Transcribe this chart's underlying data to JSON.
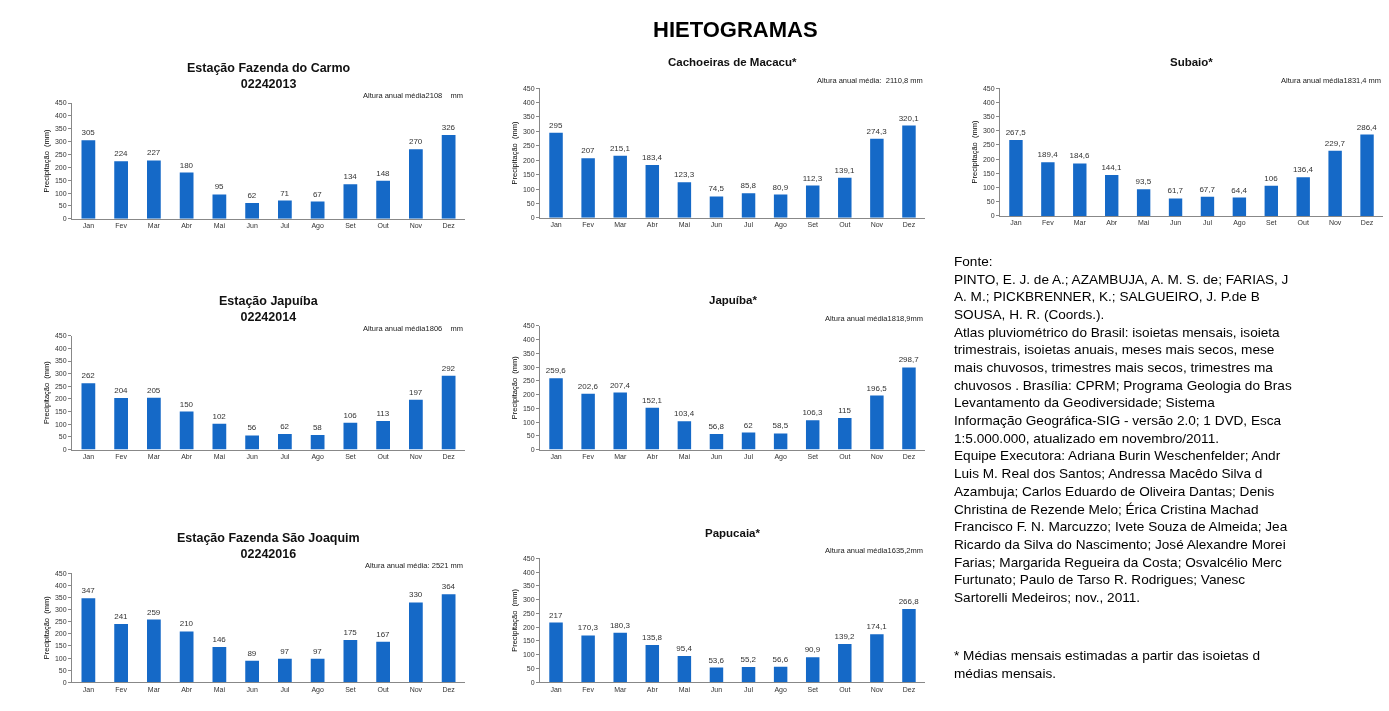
{
  "chart_data": [
    {
      "type": "other",
      "title": "HIETOGRAMAS"
    },
    {
      "type": "bar",
      "title": "Estação Fazenda do Carmo\n02242013",
      "ylabel": "Precipitação  (mm)",
      "annotations": [
        "Altura anual média2108    mm"
      ],
      "categories": [
        "Jan",
        "Fev",
        "Mar",
        "Abr",
        "Mai",
        "Jun",
        "Jul",
        "Ago",
        "Set",
        "Out",
        "Nov",
        "Dez"
      ],
      "color": "#1569c7",
      "values": [
        305,
        224,
        227,
        180,
        95,
        62,
        71,
        67,
        134,
        148,
        270,
        326
      ],
      "value_labels": [
        "305",
        "224",
        "227",
        "180",
        "95",
        "62",
        "71",
        "67",
        "134",
        "148",
        "270",
        "326"
      ],
      "ylim": [
        0,
        450
      ],
      "yticks": [
        0,
        50,
        100,
        150,
        200,
        250,
        300,
        350,
        400,
        450
      ]
    },
    {
      "type": "bar",
      "title": "Cachoeiras de Macacu*",
      "ylabel": "Precipitação  (mm)",
      "annotations": [
        "Altura anual média:  2110,8 mm"
      ],
      "categories": [
        "Jan",
        "Fev",
        "Mar",
        "Abr",
        "Mai",
        "Jun",
        "Jul",
        "Ago",
        "Set",
        "Out",
        "Nov",
        "Dez"
      ],
      "color": "#1569c7",
      "values": [
        295,
        207,
        215.1,
        183.4,
        123.3,
        74.5,
        85.8,
        80.9,
        112.3,
        139.1,
        274.3,
        320.1
      ],
      "value_labels": [
        "295",
        "207",
        "215,1",
        "183,4",
        "123,3",
        "74,5",
        "85,8",
        "80,9",
        "112,3",
        "139,1",
        "274,3",
        "320,1"
      ],
      "ylim": [
        0,
        450
      ],
      "yticks": [
        0,
        50,
        100,
        150,
        200,
        250,
        300,
        350,
        400,
        450
      ]
    },
    {
      "type": "bar",
      "title": "Subaio*",
      "ylabel": "Precipitação  (mm)",
      "annotations": [
        "Altura anual média1831,4 mm"
      ],
      "categories": [
        "Jan",
        "Fev",
        "Mar",
        "Abr",
        "Mai",
        "Jun",
        "Jul",
        "Ago",
        "Set",
        "Out",
        "Nov",
        "Dez"
      ],
      "color": "#1569c7",
      "values": [
        267.5,
        189.4,
        184.6,
        144.1,
        93.5,
        61.7,
        67.7,
        64.4,
        106,
        136.4,
        229.7,
        286.4
      ],
      "value_labels": [
        "267,5",
        "189,4",
        "184,6",
        "144,1",
        "93,5",
        "61,7",
        "67,7",
        "64,4",
        "106",
        "136,4",
        "229,7",
        "286,4"
      ],
      "ylim": [
        0,
        450
      ],
      "yticks": [
        0,
        50,
        100,
        150,
        200,
        250,
        300,
        350,
        400,
        450
      ]
    },
    {
      "type": "bar",
      "title": "Estação Japuíba\n02242014",
      "ylabel": "Precipitação  (mm)",
      "annotations": [
        "Altura anual média1806    mm"
      ],
      "categories": [
        "Jan",
        "Fev",
        "Mar",
        "Abr",
        "Mai",
        "Jun",
        "Jul",
        "Ago",
        "Set",
        "Out",
        "Nov",
        "Dez"
      ],
      "color": "#1569c7",
      "values": [
        262,
        204,
        205,
        150,
        102,
        56,
        62,
        58,
        106,
        113,
        197,
        292
      ],
      "value_labels": [
        "262",
        "204",
        "205",
        "150",
        "102",
        "56",
        "62",
        "58",
        "106",
        "113",
        "197",
        "292"
      ],
      "ylim": [
        0,
        450
      ],
      "yticks": [
        0,
        50,
        100,
        150,
        200,
        250,
        300,
        350,
        400,
        450
      ]
    },
    {
      "type": "bar",
      "title": "Japuíba*",
      "ylabel": "Precipitação  (mm)",
      "annotations": [
        "Altura anual média1818,9mm"
      ],
      "categories": [
        "Jan",
        "Fev",
        "Mar",
        "Abr",
        "Mai",
        "Jun",
        "Jul",
        "Ago",
        "Set",
        "Out",
        "Nov",
        "Dez"
      ],
      "color": "#1569c7",
      "values": [
        259.6,
        202.6,
        207.4,
        152.1,
        103.4,
        56.8,
        62,
        58.5,
        106.3,
        115,
        196.5,
        298.7
      ],
      "value_labels": [
        "259,6",
        "202,6",
        "207,4",
        "152,1",
        "103,4",
        "56,8",
        "62",
        "58,5",
        "106,3",
        "115",
        "196,5",
        "298,7"
      ],
      "ylim": [
        0,
        450
      ],
      "yticks": [
        0,
        50,
        100,
        150,
        200,
        250,
        300,
        350,
        400,
        450
      ]
    },
    {
      "type": "other",
      "annotations": [
        "Fonte:\nPINTO, E. J. de A.; AZAMBUJA, A. M. S. de; FARIAS, J\nA. M.; PICKBRENNER, K.; SALGUEIRO, J. P.de B\nSOUSA, H. R. (Coords.).\nAtlas pluviométrico do Brasil: isoietas mensais, isoieta\ntrimestrais, isoietas anuais, meses mais secos, mese\nmais chuvosos, trimestres mais secos, trimestres ma\nchuvosos . Brasília: CPRM; Programa Geologia do Bras\nLevantamento da Geodiversidade; Sistema\nInformação Geográfica-SIG - versão 2.0; 1 DVD, Esca\n1:5.000.000, atualizado em novembro/2011.\nEquipe Executora: Adriana Burin Weschenfelder; Andr\nLuis M. Real dos Santos; Andressa Macêdo Silva d\nAzambuja; Carlos Eduardo de Oliveira Dantas; Denis\nChristina de Rezende Melo; Érica Cristina Machad\nFrancisco F. N. Marcuzzo; Ivete Souza de Almeida; Jea\nRicardo da Silva do Nascimento; José Alexandre Morei\nFarias; Margarida Regueira da Costa; Osvalcélio Merc\nFurtunato; Paulo de Tarso R. Rodrigues; Vanesc\nSartorelli Medeiros; nov., 2011.",
        "* Médias mensais estimadas a partir das isoietas d\nmédias mensais."
      ]
    },
    {
      "type": "bar",
      "title": "Estação Fazenda São Joaquim\n02242016",
      "ylabel": "Precipitação  (mm)",
      "annotations": [
        "Altura anual média: 2521 mm"
      ],
      "categories": [
        "Jan",
        "Fev",
        "Mar",
        "Abr",
        "Mai",
        "Jun",
        "Jul",
        "Ago",
        "Set",
        "Out",
        "Nov",
        "Dez"
      ],
      "color": "#1569c7",
      "values": [
        347,
        241,
        259,
        210,
        146,
        89,
        97,
        97,
        175,
        167,
        330,
        364
      ],
      "value_labels": [
        "347",
        "241",
        "259",
        "210",
        "146",
        "89",
        "97",
        "97",
        "175",
        "167",
        "330",
        "364"
      ],
      "ylim": [
        0,
        450
      ],
      "yticks": [
        0,
        50,
        100,
        150,
        200,
        250,
        300,
        350,
        400,
        450
      ]
    },
    {
      "type": "bar",
      "title": "Papucaia*",
      "ylabel": "Precipitação  (mm)",
      "annotations": [
        "Altura anual média1635,2mm"
      ],
      "categories": [
        "Jan",
        "Fev",
        "Mar",
        "Abr",
        "Mai",
        "Jun",
        "Jul",
        "Ago",
        "Set",
        "Out",
        "Nov",
        "Dez"
      ],
      "color": "#1569c7",
      "values": [
        217,
        170.3,
        180.3,
        135.8,
        95.4,
        53.6,
        55.2,
        56.6,
        90.9,
        139.2,
        174.1,
        266.8
      ],
      "value_labels": [
        "217",
        "170,3",
        "180,3",
        "135,8",
        "95,4",
        "53,6",
        "55,2",
        "56,6",
        "90,9",
        "139,2",
        "174,1",
        "266,8"
      ],
      "ylim": [
        0,
        450
      ],
      "yticks": [
        0,
        50,
        100,
        150,
        200,
        250,
        300,
        350,
        400,
        450
      ]
    }
  ]
}
